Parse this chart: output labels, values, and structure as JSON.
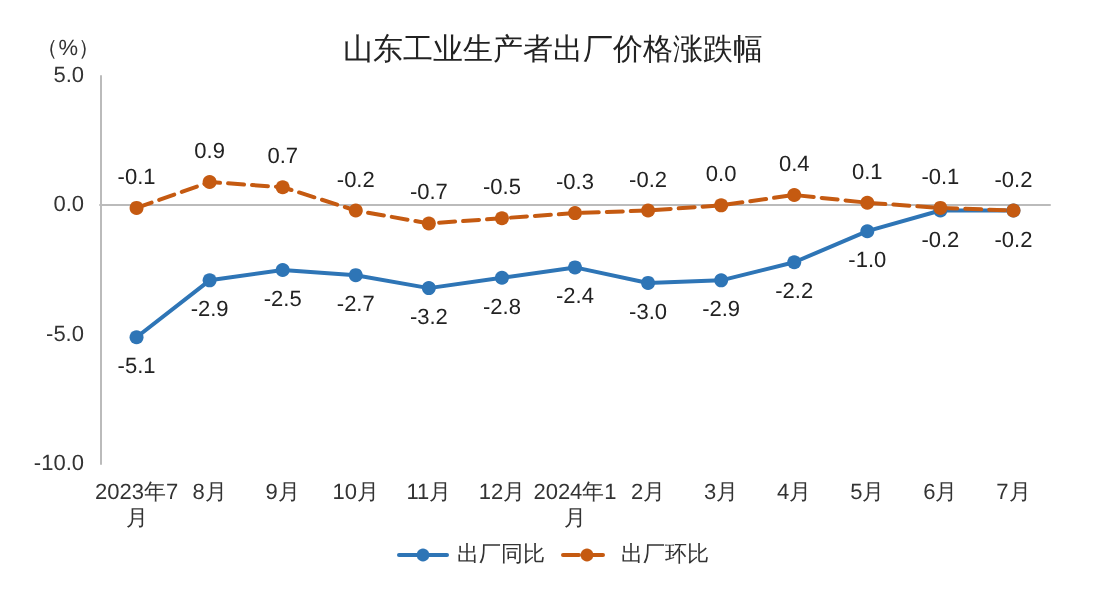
{
  "chart_data": {
    "type": "line",
    "title": "山东工业生产者出厂价格涨跌幅",
    "ylabel": "（%）",
    "categories": [
      "2023年7月",
      "8月",
      "9月",
      "10月",
      "11月",
      "12月",
      "2024年1月",
      "2月",
      "3月",
      "4月",
      "5月",
      "6月",
      "7月"
    ],
    "series": [
      {
        "name": "出厂同比",
        "color": "#2e75b6",
        "line_style": "solid",
        "values": [
          -5.1,
          -2.9,
          -2.5,
          -2.7,
          -3.2,
          -2.8,
          -2.4,
          -3.0,
          -2.9,
          -2.2,
          -1.0,
          -0.2,
          -0.2
        ],
        "value_labels": [
          "-5.1",
          "-2.9",
          "-2.5",
          "-2.7",
          "-3.2",
          "-2.8",
          "-2.4",
          "-3.0",
          "-2.9",
          "-2.2",
          "-1.0",
          "-0.2",
          "-0.2"
        ]
      },
      {
        "name": "出厂环比",
        "color": "#c55a11",
        "line_style": "dashed",
        "values": [
          -0.1,
          0.9,
          0.7,
          -0.2,
          -0.7,
          -0.5,
          -0.3,
          -0.2,
          0.0,
          0.4,
          0.1,
          -0.1,
          -0.2
        ],
        "value_labels": [
          "-0.1",
          "0.9",
          "0.7",
          "-0.2",
          "-0.7",
          "-0.5",
          "-0.3",
          "-0.2",
          "0.0",
          "0.4",
          "0.1",
          "-0.1",
          "-0.2"
        ]
      }
    ],
    "ylim": [
      -10,
      5
    ],
    "yticks": [
      {
        "value": -10,
        "label": "-10.0"
      },
      {
        "value": -5,
        "label": "-5.0"
      },
      {
        "value": 0,
        "label": "0.0"
      },
      {
        "value": 5,
        "label": "5.0"
      }
    ],
    "legend": "bottom",
    "marker": "circle"
  }
}
